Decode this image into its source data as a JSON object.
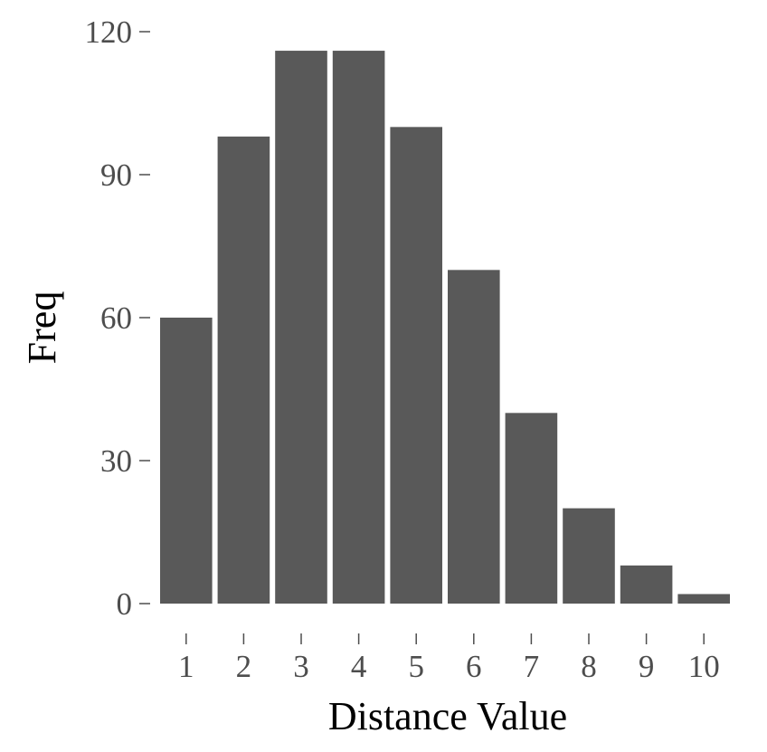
{
  "chart_data": {
    "type": "bar",
    "categories": [
      "1",
      "2",
      "3",
      "4",
      "5",
      "6",
      "7",
      "8",
      "9",
      "10"
    ],
    "values": [
      60,
      98,
      116,
      116,
      100,
      70,
      40,
      20,
      8,
      2
    ],
    "xlabel": "Distance Value",
    "ylabel": "Freq",
    "ylim": [
      0,
      120
    ],
    "yticks": [
      "0",
      "30",
      "60",
      "90",
      "120"
    ],
    "grid": false,
    "bar_color": "#595959"
  }
}
